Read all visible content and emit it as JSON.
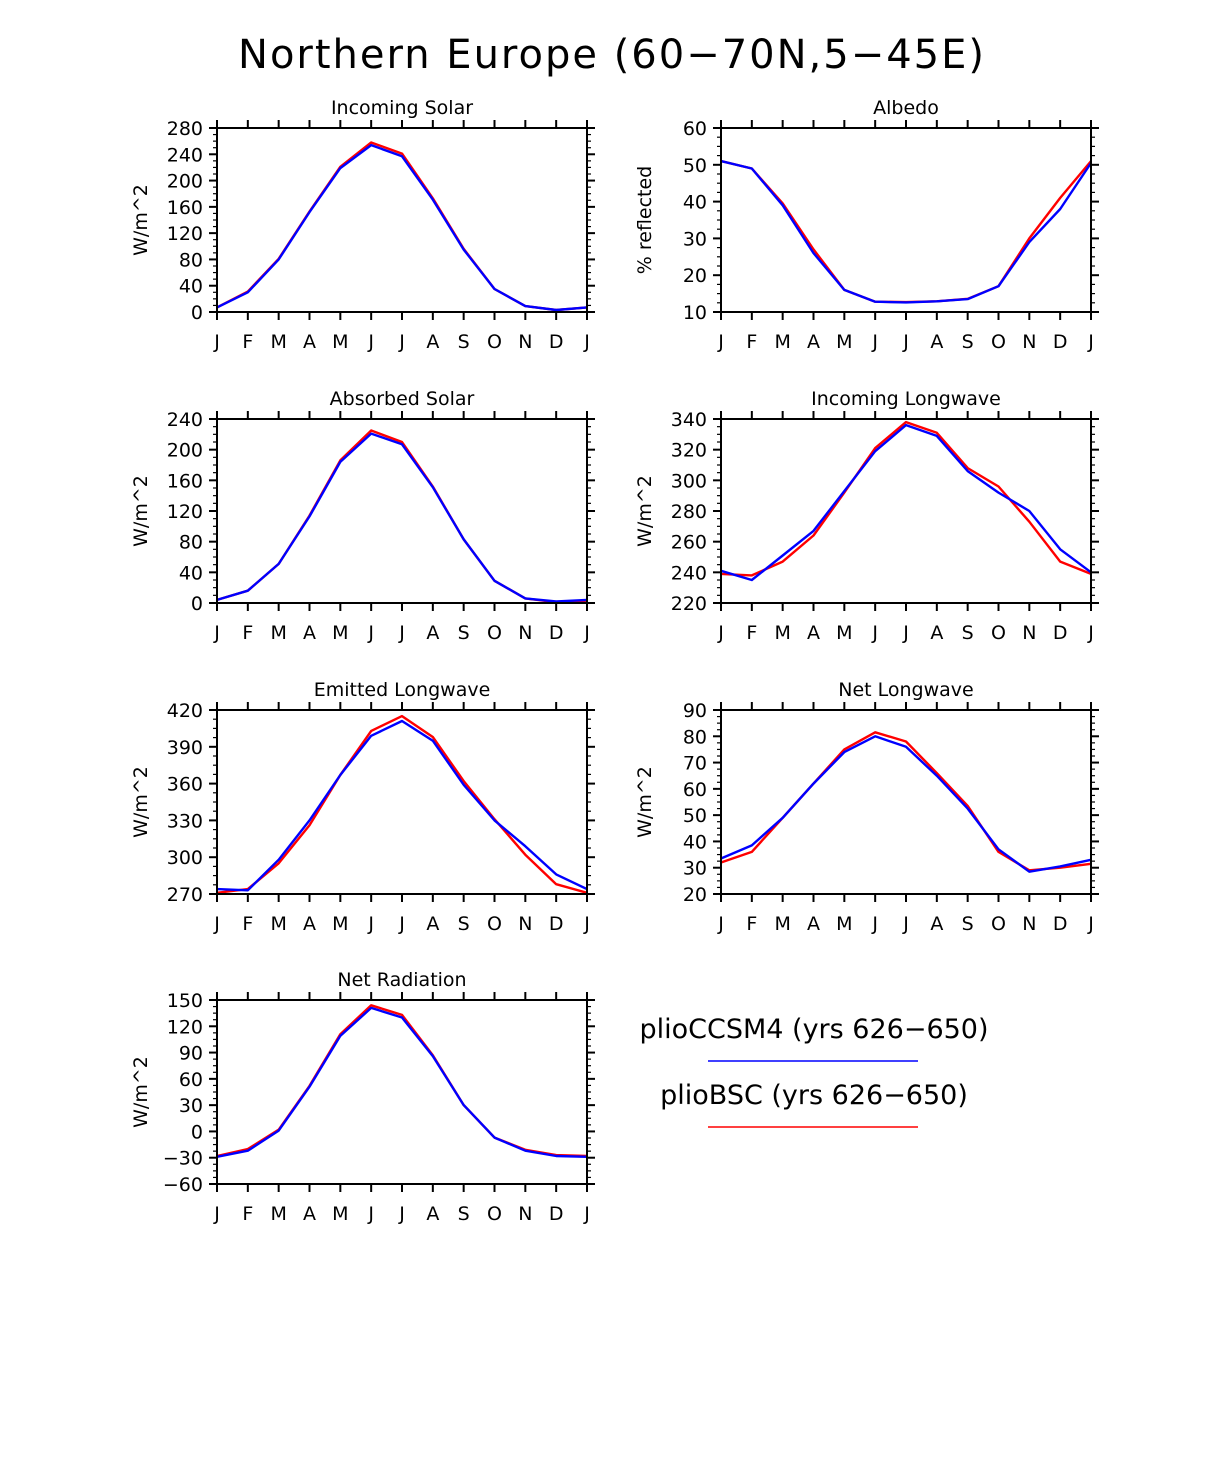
{
  "title": "Northern Europe (60−70N,5−45E)",
  "legend": [
    {
      "label": "plioCCSM4 (yrs 626−650)",
      "color": "#0000ff"
    },
    {
      "label": "plioBSC (yrs 626−650)",
      "color": "#ff0000"
    }
  ],
  "chart_data": [
    {
      "type": "line",
      "title": "Incoming Solar",
      "ylabel": "W/m^2",
      "categories": [
        "J",
        "F",
        "M",
        "A",
        "M",
        "J",
        "J",
        "A",
        "S",
        "O",
        "N",
        "D",
        "J"
      ],
      "ylim": [
        0,
        280
      ],
      "yticks": [
        0,
        40,
        80,
        120,
        160,
        200,
        240,
        280
      ],
      "ytick_labels": [
        "0",
        "40",
        "80",
        "120",
        "160",
        "200",
        "240",
        "280"
      ],
      "series": [
        {
          "name": "plioBSC",
          "color": "#ff0000",
          "values": [
            7,
            31,
            81,
            153,
            221,
            258,
            241,
            173,
            96,
            35,
            9,
            3,
            7
          ]
        },
        {
          "name": "plioCCSM4",
          "color": "#0000ff",
          "values": [
            7,
            30,
            80,
            152,
            219,
            254,
            237,
            171,
            95,
            35,
            9,
            3,
            7
          ]
        }
      ]
    },
    {
      "type": "line",
      "title": "Albedo",
      "ylabel": "% reflected",
      "categories": [
        "J",
        "F",
        "M",
        "A",
        "M",
        "J",
        "J",
        "A",
        "S",
        "O",
        "N",
        "D",
        "J"
      ],
      "ylim": [
        10,
        60
      ],
      "yticks": [
        10,
        20,
        30,
        40,
        50,
        60
      ],
      "ytick_labels": [
        "10",
        "20",
        "30",
        "40",
        "50",
        "60"
      ],
      "series": [
        {
          "name": "plioBSC",
          "color": "#ff0000",
          "values": [
            51,
            49,
            39.5,
            27,
            16,
            12.8,
            12.7,
            12.9,
            13.6,
            17,
            30,
            41,
            51
          ]
        },
        {
          "name": "plioCCSM4",
          "color": "#0000ff",
          "values": [
            51,
            49,
            39,
            26,
            16,
            12.8,
            12.6,
            12.9,
            13.5,
            17,
            29,
            38,
            50.5
          ]
        }
      ]
    },
    {
      "type": "line",
      "title": "Absorbed Solar",
      "ylabel": "W/m^2",
      "categories": [
        "J",
        "F",
        "M",
        "A",
        "M",
        "J",
        "J",
        "A",
        "S",
        "O",
        "N",
        "D",
        "J"
      ],
      "ylim": [
        0,
        240
      ],
      "yticks": [
        0,
        40,
        80,
        120,
        160,
        200,
        240
      ],
      "ytick_labels": [
        "0",
        "40",
        "80",
        "120",
        "160",
        "200",
        "240"
      ],
      "series": [
        {
          "name": "plioBSC",
          "color": "#ff0000",
          "values": [
            4,
            16,
            51,
            114,
            186,
            225,
            210,
            152,
            83,
            29,
            6,
            1,
            3
          ]
        },
        {
          "name": "plioCCSM4",
          "color": "#0000ff",
          "values": [
            4,
            16,
            51,
            113,
            184,
            221,
            207,
            151,
            83,
            29,
            6,
            2,
            4
          ]
        }
      ]
    },
    {
      "type": "line",
      "title": "Incoming Longwave",
      "ylabel": "W/m^2",
      "categories": [
        "J",
        "F",
        "M",
        "A",
        "M",
        "J",
        "J",
        "A",
        "S",
        "O",
        "N",
        "D",
        "J"
      ],
      "ylim": [
        220,
        340
      ],
      "yticks": [
        220,
        240,
        260,
        280,
        300,
        320,
        340
      ],
      "ytick_labels": [
        "220",
        "240",
        "260",
        "280",
        "300",
        "320",
        "340"
      ],
      "series": [
        {
          "name": "plioBSC",
          "color": "#ff0000",
          "values": [
            239,
            238,
            247,
            264,
            292,
            321,
            338,
            331,
            308,
            296,
            273,
            247,
            239
          ]
        },
        {
          "name": "plioCCSM4",
          "color": "#0000ff",
          "values": [
            241,
            235,
            251,
            267,
            293,
            319,
            336,
            329,
            306,
            292,
            280,
            255,
            240
          ]
        }
      ]
    },
    {
      "type": "line",
      "title": "Emitted Longwave",
      "ylabel": "W/m^2",
      "categories": [
        "J",
        "F",
        "M",
        "A",
        "M",
        "J",
        "J",
        "A",
        "S",
        "O",
        "N",
        "D",
        "J"
      ],
      "ylim": [
        270,
        420
      ],
      "yticks": [
        270,
        300,
        330,
        360,
        390,
        420
      ],
      "ytick_labels": [
        "270",
        "300",
        "330",
        "360",
        "390",
        "420"
      ],
      "series": [
        {
          "name": "plioBSC",
          "color": "#ff0000",
          "values": [
            271,
            274,
            295,
            326,
            367,
            403,
            415,
            398,
            362,
            331,
            302,
            278,
            271
          ]
        },
        {
          "name": "plioCCSM4",
          "color": "#0000ff",
          "values": [
            274,
            273,
            298,
            330,
            367,
            399,
            411,
            395,
            359,
            330,
            309,
            286,
            274
          ]
        }
      ]
    },
    {
      "type": "line",
      "title": "Net Longwave",
      "ylabel": "W/m^2",
      "categories": [
        "J",
        "F",
        "M",
        "A",
        "M",
        "J",
        "J",
        "A",
        "S",
        "O",
        "N",
        "D",
        "J"
      ],
      "ylim": [
        20,
        90
      ],
      "yticks": [
        20,
        30,
        40,
        50,
        60,
        70,
        80,
        90
      ],
      "ytick_labels": [
        "20",
        "30",
        "40",
        "50",
        "60",
        "70",
        "80",
        "90"
      ],
      "series": [
        {
          "name": "plioBSC",
          "color": "#ff0000",
          "values": [
            32,
            36,
            49,
            62,
            75,
            81.5,
            78,
            66,
            53.5,
            36,
            29,
            30,
            31.5
          ]
        },
        {
          "name": "plioCCSM4",
          "color": "#0000ff",
          "values": [
            33.5,
            38.5,
            49,
            62,
            74,
            80,
            76,
            65,
            52.5,
            37,
            28.5,
            30.5,
            33
          ]
        }
      ]
    },
    {
      "type": "line",
      "title": "Net Radiation",
      "ylabel": "W/m^2",
      "categories": [
        "J",
        "F",
        "M",
        "A",
        "M",
        "J",
        "J",
        "A",
        "S",
        "O",
        "N",
        "D",
        "J"
      ],
      "ylim": [
        -60,
        150
      ],
      "yticks": [
        -60,
        -30,
        0,
        30,
        60,
        90,
        120,
        150
      ],
      "ytick_labels": [
        "−60",
        "−30",
        "0",
        "30",
        "60",
        "90",
        "120",
        "150"
      ],
      "series": [
        {
          "name": "plioBSC",
          "color": "#ff0000",
          "values": [
            -28,
            -20,
            2,
            52,
            111,
            144,
            133,
            87,
            30,
            -7,
            -21,
            -27,
            -28
          ]
        },
        {
          "name": "plioCCSM4",
          "color": "#0000ff",
          "values": [
            -29,
            -22,
            1,
            51,
            109,
            141,
            130,
            86,
            30,
            -7,
            -22,
            -28,
            -29
          ]
        }
      ]
    }
  ]
}
